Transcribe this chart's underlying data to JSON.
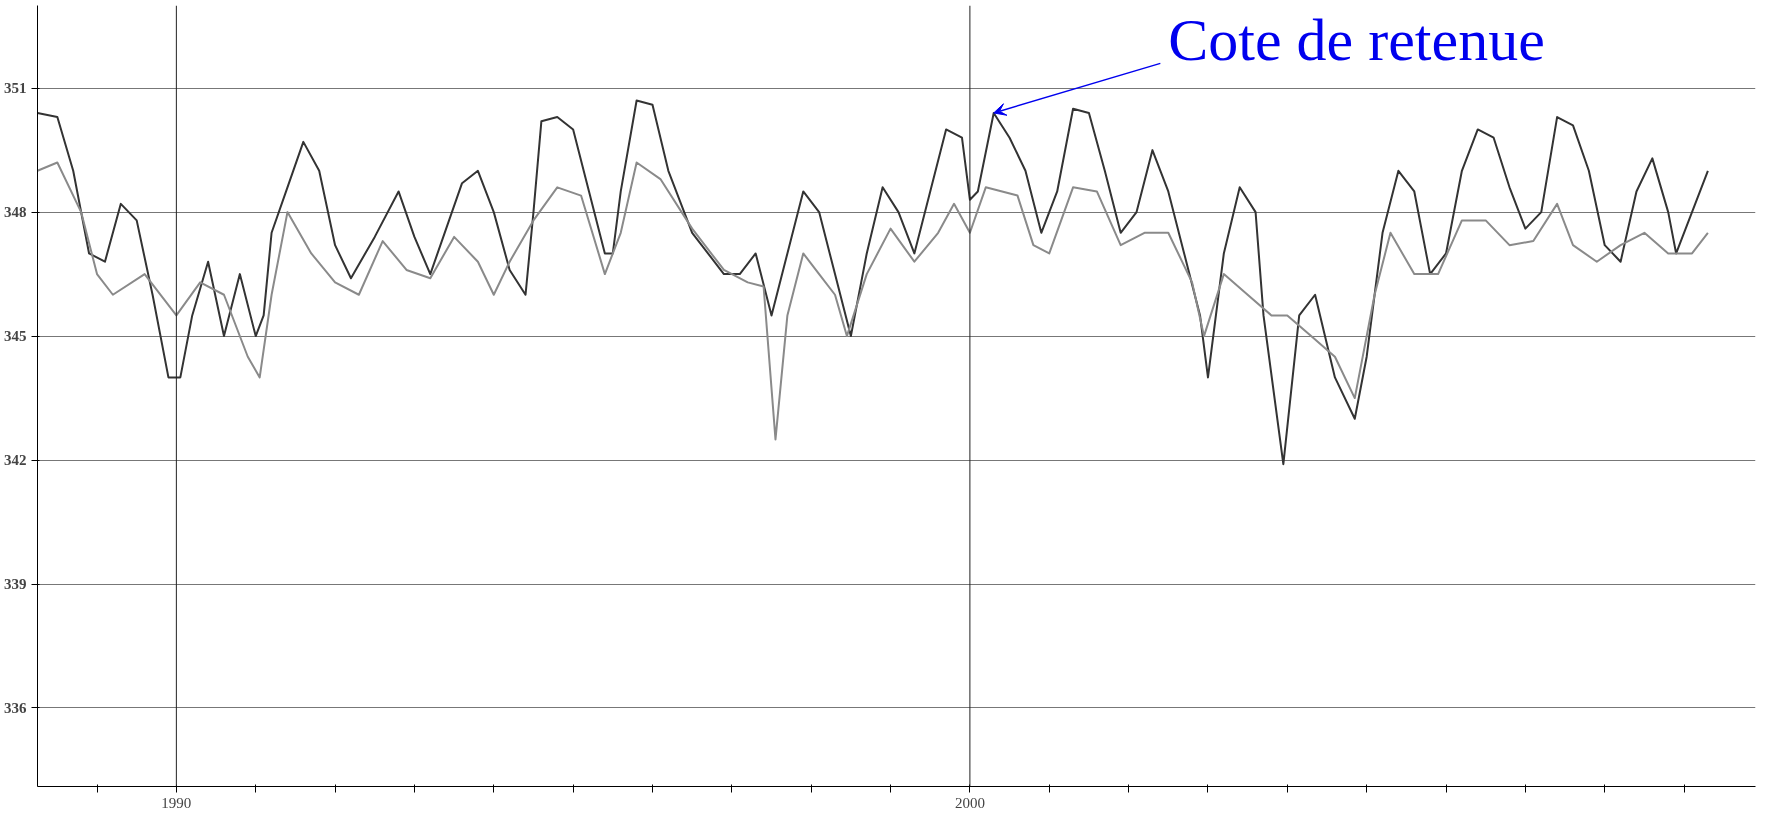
{
  "chart_data": {
    "type": "line",
    "annotations": [
      {
        "text": "Cote de retenue",
        "x": 2000.3,
        "y": 350.4
      }
    ],
    "xlim": [
      1988.25,
      2009.9
    ],
    "ylim": [
      334.1,
      353.0
    ],
    "xticks": [
      {
        "value": 1989,
        "label": null
      },
      {
        "value": 1990,
        "label": "1990"
      },
      {
        "value": 1991,
        "label": null
      },
      {
        "value": 1992,
        "label": null
      },
      {
        "value": 1993,
        "label": null
      },
      {
        "value": 1994,
        "label": null
      },
      {
        "value": 1995,
        "label": null
      },
      {
        "value": 1996,
        "label": null
      },
      {
        "value": 1997,
        "label": null
      },
      {
        "value": 1998,
        "label": null
      },
      {
        "value": 1999,
        "label": null
      },
      {
        "value": 2000,
        "label": "2000"
      },
      {
        "value": 2001,
        "label": null
      },
      {
        "value": 2002,
        "label": null
      },
      {
        "value": 2003,
        "label": null
      },
      {
        "value": 2004,
        "label": null
      },
      {
        "value": 2005,
        "label": null
      },
      {
        "value": 2006,
        "label": null
      },
      {
        "value": 2007,
        "label": null
      },
      {
        "value": 2008,
        "label": null
      },
      {
        "value": 2009,
        "label": null
      }
    ],
    "yticks": [
      336,
      339,
      342,
      345,
      348,
      351
    ],
    "grid": "y",
    "ref_lines": [
      {
        "axis": "x",
        "value": 1990,
        "color": "#222222"
      },
      {
        "axis": "x",
        "value": 2000,
        "color": "#222222"
      }
    ],
    "series": [
      {
        "color": "#333333",
        "x": [
          1988.25,
          1988.5,
          1988.7,
          1988.9,
          1989.1,
          1989.3,
          1989.5,
          1989.7,
          1989.9,
          1990.05,
          1990.2,
          1990.4,
          1990.6,
          1990.8,
          1991.0,
          1991.1,
          1991.2,
          1991.4,
          1991.6,
          1991.8,
          1992.0,
          1992.2,
          1992.5,
          1992.8,
          1993.0,
          1993.2,
          1993.4,
          1993.6,
          1993.8,
          1994.0,
          1994.2,
          1994.4,
          1994.5,
          1994.6,
          1994.8,
          1995.0,
          1995.2,
          1995.4,
          1995.5,
          1995.6,
          1995.8,
          1996.0,
          1996.2,
          1996.5,
          1996.9,
          1997.1,
          1997.3,
          1997.5,
          1997.7,
          1997.9,
          1998.1,
          1998.3,
          1998.5,
          1998.7,
          1998.9,
          1999.1,
          1999.3,
          1999.5,
          1999.7,
          1999.9,
          2000.0,
          2000.1,
          2000.3,
          2000.5,
          2000.7,
          2000.9,
          2001.1,
          2001.3,
          2001.5,
          2001.7,
          2001.9,
          2002.1,
          2002.3,
          2002.5,
          2002.7,
          2002.9,
          2003.0,
          2003.2,
          2003.4,
          2003.6,
          2003.7,
          2003.95,
          2004.15,
          2004.35,
          2004.6,
          2004.85,
          2005.0,
          2005.2,
          2005.4,
          2005.6,
          2005.8,
          2006.0,
          2006.2,
          2006.4,
          2006.6,
          2006.8,
          2007.0,
          2007.2,
          2007.4,
          2007.6,
          2007.8,
          2008.0,
          2008.2,
          2008.4,
          2008.6,
          2008.8,
          2008.9,
          2009.1,
          2009.3
        ],
        "values": [
          350.4,
          350.3,
          349.0,
          347.0,
          346.8,
          348.2,
          347.8,
          346.0,
          344.0,
          344.0,
          345.5,
          346.8,
          345.0,
          346.5,
          345.0,
          345.5,
          347.5,
          348.6,
          349.7,
          349.0,
          347.2,
          346.4,
          347.4,
          348.5,
          347.4,
          346.5,
          347.6,
          348.7,
          349.0,
          348.0,
          346.6,
          346.0,
          348.0,
          350.2,
          350.3,
          350.0,
          348.5,
          347.0,
          347.0,
          348.5,
          350.7,
          350.6,
          349.0,
          347.5,
          346.5,
          346.5,
          347.0,
          345.5,
          347.0,
          348.5,
          348.0,
          346.5,
          345.0,
          347.0,
          348.6,
          348.0,
          347.0,
          348.5,
          350.0,
          349.8,
          348.3,
          348.5,
          350.4,
          349.8,
          349.0,
          347.5,
          348.5,
          350.5,
          350.4,
          349.0,
          347.5,
          348.0,
          349.5,
          348.5,
          347.0,
          345.5,
          344.0,
          347.0,
          348.6,
          348.0,
          345.5,
          341.9,
          345.5,
          346.0,
          344.0,
          343.0,
          344.5,
          347.5,
          349.0,
          348.5,
          346.5,
          347.0,
          349.0,
          350.0,
          349.8,
          348.6,
          347.6,
          348.0,
          350.3,
          350.1,
          349.0,
          347.2,
          346.8,
          348.5,
          349.3,
          348.0,
          347.0,
          348.0,
          349.0
        ]
      },
      {
        "color": "#8a8a8a",
        "x": [
          1988.25,
          1988.5,
          1988.8,
          1989.0,
          1989.2,
          1989.6,
          1990.0,
          1990.3,
          1990.6,
          1990.9,
          1991.05,
          1991.2,
          1991.4,
          1991.7,
          1992.0,
          1992.3,
          1992.6,
          1992.9,
          1993.2,
          1993.5,
          1993.8,
          1994.0,
          1994.2,
          1994.5,
          1994.8,
          1995.1,
          1995.4,
          1995.6,
          1995.8,
          1996.1,
          1996.5,
          1996.9,
          1997.2,
          1997.4,
          1997.55,
          1997.7,
          1997.9,
          1998.1,
          1998.3,
          1998.45,
          1998.7,
          1999.0,
          1999.3,
          1999.6,
          1999.8,
          2000.0,
          2000.2,
          2000.6,
          2000.8,
          2001.0,
          2001.3,
          2001.6,
          2001.9,
          2002.2,
          2002.5,
          2002.8,
          2002.95,
          2003.2,
          2003.5,
          2003.8,
          2004.0,
          2004.3,
          2004.6,
          2004.85,
          2005.1,
          2005.3,
          2005.6,
          2005.9,
          2006.2,
          2006.5,
          2006.8,
          2007.1,
          2007.4,
          2007.6,
          2007.9,
          2008.2,
          2008.5,
          2008.8,
          2009.1,
          2009.3
        ],
        "values": [
          349.0,
          349.2,
          348.0,
          346.5,
          346.0,
          346.5,
          345.5,
          346.3,
          346.0,
          344.5,
          344.0,
          346.0,
          348.0,
          347.0,
          346.3,
          346.0,
          347.3,
          346.6,
          346.4,
          347.4,
          346.8,
          346.0,
          346.8,
          347.8,
          348.6,
          348.4,
          346.5,
          347.5,
          349.2,
          348.8,
          347.6,
          346.6,
          346.3,
          346.2,
          342.5,
          345.5,
          347.0,
          346.5,
          346.0,
          345.0,
          346.5,
          347.6,
          346.8,
          347.5,
          348.2,
          347.5,
          348.6,
          348.4,
          347.2,
          347.0,
          348.6,
          348.5,
          347.2,
          347.5,
          347.5,
          346.3,
          345.0,
          346.5,
          346.0,
          345.5,
          345.5,
          345.0,
          344.5,
          343.5,
          346.0,
          347.5,
          346.5,
          346.5,
          347.8,
          347.8,
          347.2,
          347.3,
          348.2,
          347.2,
          346.8,
          347.2,
          347.5,
          347.0,
          347.0,
          347.5
        ]
      }
    ]
  }
}
